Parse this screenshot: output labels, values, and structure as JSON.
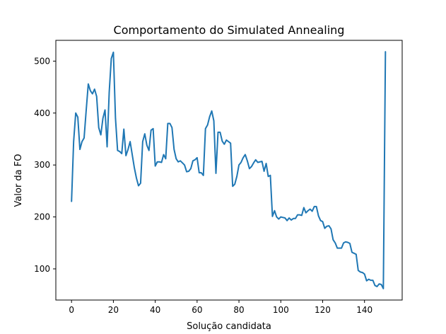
{
  "chart_data": {
    "type": "line",
    "title": "Comportamento do Simulated Annealing",
    "xlabel": "Solução candidata",
    "ylabel": "Valor da FO",
    "xlim": [
      -7.5,
      158
    ],
    "ylim": [
      40,
      540
    ],
    "x_ticks": [
      0,
      20,
      40,
      60,
      80,
      100,
      120,
      140
    ],
    "y_ticks": [
      100,
      200,
      300,
      400,
      500
    ],
    "grid": false,
    "line_color": "#1f77b4",
    "series": [
      {
        "values": [
          230,
          345,
          400,
          392,
          330,
          345,
          352,
          405,
          456,
          443,
          437,
          446,
          432,
          372,
          358,
          390,
          406,
          335,
          440,
          505,
          517,
          390,
          328,
          326,
          322,
          369,
          318,
          330,
          345,
          320,
          295,
          275,
          260,
          265,
          345,
          360,
          338,
          328,
          367,
          370,
          298,
          306,
          306,
          305,
          320,
          312,
          380,
          380,
          372,
          330,
          312,
          306,
          308,
          304,
          300,
          287,
          288,
          293,
          308,
          310,
          314,
          285,
          285,
          280,
          370,
          377,
          393,
          404,
          385,
          284,
          363,
          363,
          346,
          340,
          348,
          345,
          342,
          259,
          263,
          278,
          300,
          305,
          314,
          320,
          308,
          293,
          297,
          304,
          310,
          305,
          306,
          307,
          288,
          303,
          278,
          280,
          201,
          212,
          200,
          196,
          200,
          199,
          198,
          193,
          198,
          194,
          197,
          197,
          204,
          204,
          203,
          218,
          208,
          212,
          215,
          211,
          220,
          220,
          202,
          193,
          191,
          178,
          182,
          183,
          177,
          156,
          150,
          140,
          140,
          140,
          150,
          152,
          151,
          149,
          132,
          130,
          128,
          97,
          94,
          93,
          90,
          77,
          80,
          78,
          78,
          68,
          66,
          71,
          70,
          62,
          518
        ]
      }
    ]
  }
}
